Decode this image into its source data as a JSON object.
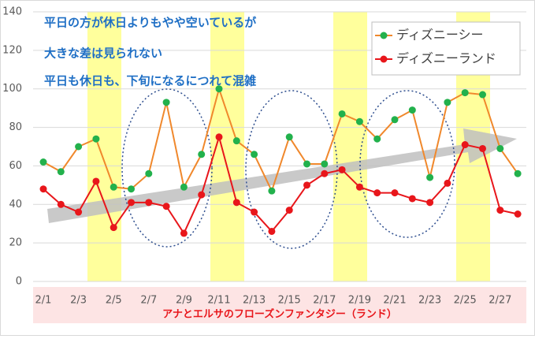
{
  "chart_data": {
    "type": "line",
    "title": "アナとエルサのフローズンファンタジー（ランド）",
    "annotations": [
      "平日の方が休日よりもやや空いているが",
      "大きな差は見られない",
      "平日も休日も、下旬になるにつれて混雑"
    ],
    "categories": [
      "2/1",
      null,
      "2/3",
      null,
      "2/5",
      null,
      "2/7",
      null,
      "2/9",
      null,
      "2/11",
      null,
      "2/13",
      null,
      "2/15",
      null,
      "2/17",
      null,
      "2/19",
      null,
      "2/21",
      null,
      "2/23",
      null,
      "2/25",
      null,
      "2/27",
      null
    ],
    "series": [
      {
        "name": "ディズニーシー",
        "color": "#f0882c",
        "marker_color": "#22b14c",
        "values": [
          62,
          57,
          70,
          74,
          49,
          48,
          56,
          93,
          49,
          66,
          100,
          73,
          66,
          47,
          75,
          61,
          61,
          87,
          83,
          74,
          84,
          89,
          54,
          93,
          98,
          97,
          69,
          56
        ]
      },
      {
        "name": "ディズニーランド",
        "color": "#e8161b",
        "marker_color": "#e8161b",
        "values": [
          48,
          40,
          36,
          52,
          28,
          41,
          41,
          39,
          25,
          45,
          75,
          41,
          36,
          26,
          37,
          50,
          56,
          58,
          49,
          46,
          46,
          43,
          41,
          51,
          71,
          69,
          37,
          35
        ]
      }
    ],
    "ylim": [
      0,
      140
    ],
    "yticks": [
      0,
      20,
      40,
      60,
      80,
      100,
      120,
      140
    ],
    "grid": true,
    "legend": "top-right"
  }
}
